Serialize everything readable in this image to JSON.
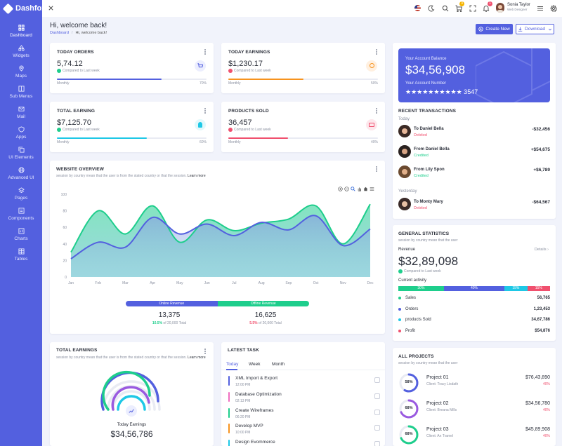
{
  "brand": {
    "name": "Dashfox",
    "accent": "#5360df"
  },
  "sidebar": {
    "items": [
      {
        "label": "Dashboard",
        "icon": "grid-icon"
      },
      {
        "label": "Widgets",
        "icon": "shapes-icon"
      },
      {
        "label": "Maps",
        "icon": "map-pin-icon"
      },
      {
        "label": "Sub Menus",
        "icon": "columns-icon"
      },
      {
        "label": "Mail",
        "icon": "mail-icon"
      },
      {
        "label": "Apps",
        "icon": "shield-icon"
      },
      {
        "label": "UI Elements",
        "icon": "copy-icon"
      },
      {
        "label": "Advanced UI",
        "icon": "globe-icon"
      },
      {
        "label": "Pages",
        "icon": "layers-icon"
      },
      {
        "label": "Components",
        "icon": "list-icon"
      },
      {
        "label": "Charts",
        "icon": "chart-icon"
      },
      {
        "label": "Tables",
        "icon": "table-icon"
      }
    ]
  },
  "topbar": {
    "cart_badge": "3",
    "notify_badge": "1",
    "user_name": "Sonia Taylor",
    "user_role": "Web Designer"
  },
  "header": {
    "title": "Hi, welcome back!",
    "breadcrumb": [
      "Dashboard",
      "Hi, welcome back!"
    ],
    "create_label": "Create New",
    "download_label": "Download"
  },
  "stats": [
    {
      "title": "TODAY ORDERS",
      "value": "5,74.12",
      "compare": "Compared to Last week",
      "trend": "up",
      "period": "Monthly",
      "percent_label": "70%",
      "percent": 70,
      "color": "#5360df"
    },
    {
      "title": "TODAY EARNINGS",
      "value": "$1,230.17",
      "compare": "Compared to Last week",
      "trend": "down",
      "period": "Monthly",
      "percent_label": "50%",
      "percent": 50,
      "color": "#f7931e"
    },
    {
      "title": "TOTAL EARNING",
      "value": "$7,125.70",
      "compare": "Compared to Last week",
      "trend": "up",
      "period": "Monthly",
      "percent_label": "60%",
      "percent": 60,
      "color": "#1ec8e6"
    },
    {
      "title": "PRODUCTS SOLD",
      "value": "36,457",
      "compare": "Compared to Last week",
      "trend": "down",
      "period": "Monthly",
      "percent_label": "40%",
      "percent": 40,
      "color": "#f0506e"
    }
  ],
  "overview": {
    "title": "WEBSITE OVERVIEW",
    "subtitle": "session by country mean that the user is from the stated country or that the session.",
    "learn_more": "Learn more",
    "online_label": "Online Revenue",
    "offline_label": "Offline Revenue",
    "online_value": "13,375",
    "online_pct": "10.5%",
    "online_of": "of 20,000 Total",
    "offline_value": "16,625",
    "offline_pct": "5.5%",
    "offline_of": "of 20,000 Total"
  },
  "chart_data": {
    "type": "area",
    "categories": [
      "Jan",
      "Feb",
      "Mar",
      "Apr",
      "May",
      "Jun",
      "Jul",
      "Aug",
      "Sep",
      "Oct",
      "Nov",
      "Dec"
    ],
    "ylim": [
      0,
      100
    ],
    "yticks": [
      "100",
      "80",
      "60",
      "40",
      "20",
      "0"
    ],
    "series": [
      {
        "color": "#5360df",
        "values": [
          22,
          42,
          36,
          72,
          52,
          64,
          50,
          66,
          57,
          74,
          38,
          58
        ]
      },
      {
        "color": "#1ece8c",
        "values": [
          30,
          80,
          52,
          86,
          42,
          69,
          56,
          65,
          70,
          86,
          40,
          88
        ]
      }
    ]
  },
  "account": {
    "label": "Your Account Balance",
    "balance": "$34,56,908",
    "number_label": "Your Account Number",
    "number": "★★★★★★★★★★ 3547"
  },
  "transactions": {
    "title": "RECENT TRANSACTIONS",
    "today": "Today",
    "yesterday": "Yesterday",
    "items": [
      {
        "name": "To Daniel Bella",
        "status": "Debited",
        "amount": "-$32,456",
        "color": "#f0506e"
      },
      {
        "name": "From Daniel Bella",
        "status": "Credited",
        "amount": "+$54,675",
        "color": "#1ece8c"
      },
      {
        "name": "From Lily Spon",
        "status": "Credited",
        "amount": "+$6,789",
        "color": "#1ece8c"
      },
      {
        "name": "To Monty Mary",
        "status": "Debited",
        "amount": "-$64,567",
        "color": "#f0506e"
      }
    ]
  },
  "general": {
    "title": "GENERAL STATISTICS",
    "subtitle": "session by country mean that the user",
    "revenue_label": "Revenue",
    "details": "Details",
    "revenue": "$32,89,098",
    "compare": "Compared to Last week",
    "activity_label": "Current activity",
    "activity": [
      {
        "pct": "30%",
        "value": 30,
        "color": "#1ece8c"
      },
      {
        "pct": "40%",
        "value": 40,
        "color": "#5360df"
      },
      {
        "pct": "15%",
        "value": 15,
        "color": "#1ec8e6"
      },
      {
        "pct": "15%",
        "value": 15,
        "color": "#f0506e"
      }
    ],
    "rows": [
      {
        "label": "Sales",
        "value": "56,765",
        "color": "#1ece8c"
      },
      {
        "label": "Orders",
        "value": "1,23,453",
        "color": "#5360df"
      },
      {
        "label": "products Sold",
        "value": "34,67,786",
        "color": "#1ec8e6"
      },
      {
        "label": "Profit",
        "value": "$54,876",
        "color": "#f0506e"
      }
    ]
  },
  "total_earnings": {
    "title": "TOTAL EARNINGS",
    "subtitle": "session by country mean that the user is from the stated country or that the session.",
    "learn_more": "Learn more",
    "label": "Today Earnings",
    "value": "$34,56,786"
  },
  "tasks": {
    "title": "LATEST TASK",
    "tabs": [
      "Today",
      "Week",
      "Month"
    ],
    "items": [
      {
        "name": "XML Import & Export",
        "time": "12:00 PM",
        "color": "#5360df"
      },
      {
        "name": "Database Optimization",
        "time": "02:13 PM",
        "color": "#f06ec0"
      },
      {
        "name": "Create Wireframes",
        "time": "06:20 PM",
        "color": "#1ece8c"
      },
      {
        "name": "Develop MVP",
        "time": "10:00 PM",
        "color": "#f7931e"
      },
      {
        "name": "Design Evommerce",
        "time": "",
        "color": "#1ec8e6"
      }
    ]
  },
  "projects": {
    "title": "ALL PROJECTS",
    "subtitle": "session by country mean that the user",
    "items": [
      {
        "name": "Project 01",
        "client": "Client: Tracy Lisdath",
        "amount": "$76,43,890",
        "change": "40%",
        "pct_label": "58%",
        "pct": 58,
        "color": "#5360df"
      },
      {
        "name": "Project 02",
        "client": "Client: Breana Mills",
        "amount": "$34,56,780",
        "change": "40%",
        "pct_label": "68%",
        "pct": 68,
        "color": "#9a5ae0"
      },
      {
        "name": "Project 03",
        "client": "Client: An Tramel",
        "amount": "$45,89,908",
        "change": "40%",
        "pct_label": "68%",
        "pct": 68,
        "color": "#1ece8c"
      }
    ]
  }
}
